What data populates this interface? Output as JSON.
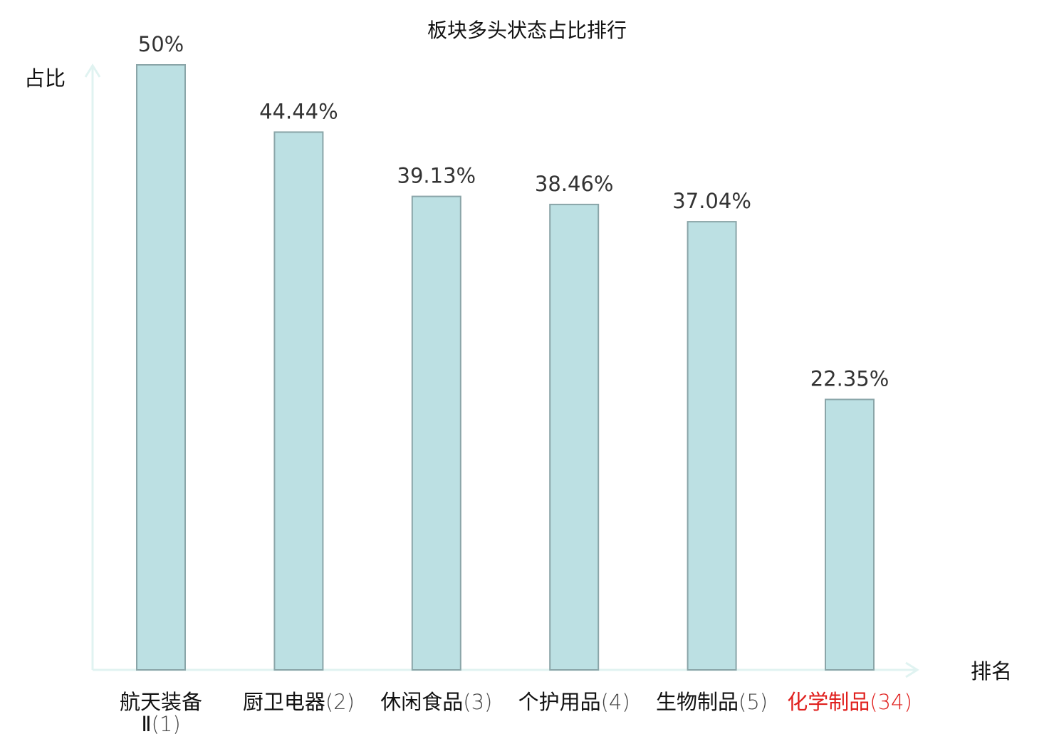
{
  "chart_data": {
    "type": "bar",
    "title": "板块多头状态占比排行",
    "ylabel": "占比",
    "xlabel": "排名",
    "categories": [
      {
        "name": "航天装备Ⅱ",
        "rank": "(1)",
        "highlight": false
      },
      {
        "name": "厨卫电器",
        "rank": "(2)",
        "highlight": false
      },
      {
        "name": "休闲食品",
        "rank": "(3)",
        "highlight": false
      },
      {
        "name": "个护用品",
        "rank": "(4)",
        "highlight": false
      },
      {
        "name": "生物制品",
        "rank": "(5)",
        "highlight": false
      },
      {
        "name": "化学制品",
        "rank": "(34)",
        "highlight": true
      }
    ],
    "values": [
      50,
      44.44,
      39.13,
      38.46,
      37.04,
      22.35
    ],
    "value_labels": [
      "50%",
      "44.44%",
      "39.13%",
      "38.46%",
      "37.04%",
      "22.35%"
    ],
    "ylim": [
      0,
      50
    ],
    "grid": false,
    "legend": "none"
  },
  "colors": {
    "bar_fill": "#bce0e3",
    "bar_stroke": "#8aa5a8",
    "axis": "#e0f3f1",
    "text": "#333333",
    "label_text": "#111111",
    "rank_text": "#444444",
    "highlight": "#e0201e"
  }
}
